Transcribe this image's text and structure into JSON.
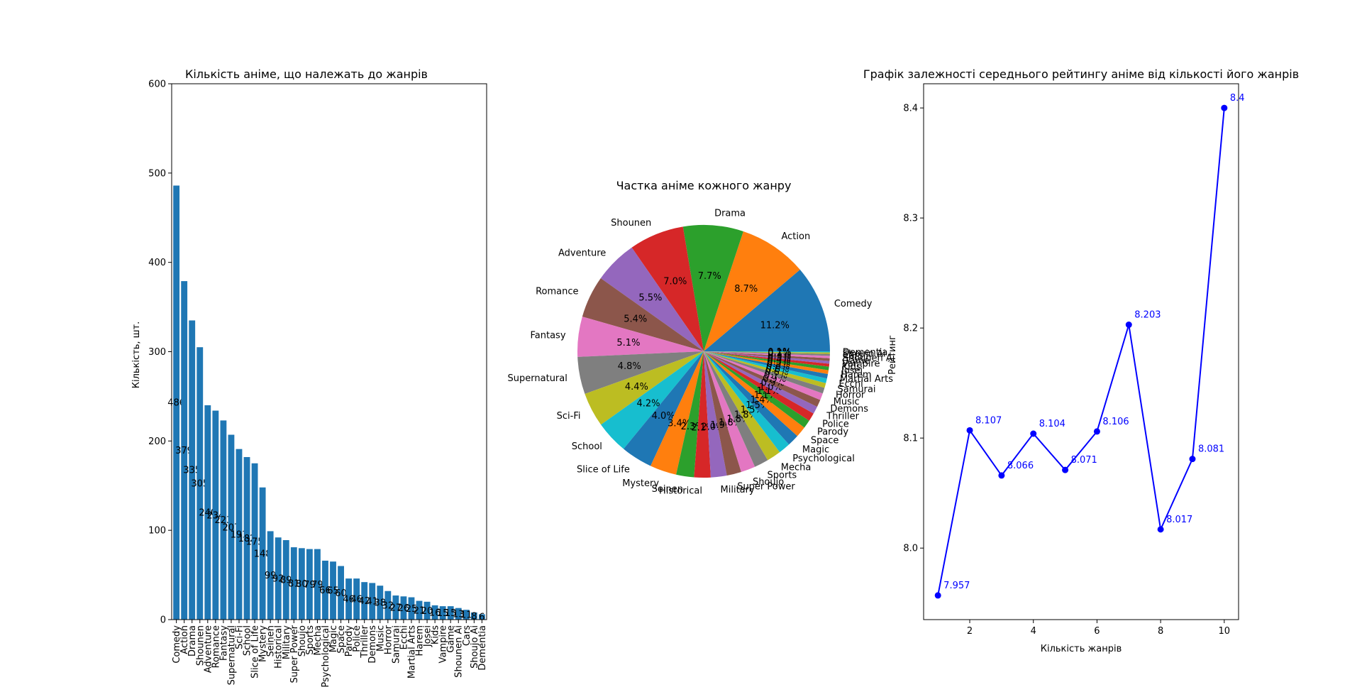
{
  "chart_data": [
    {
      "type": "bar",
      "title": "Кількість аніме, що належать до жанрів",
      "xlabel": "",
      "ylabel": "Кількість, шт.",
      "ylim": [
        0,
        600
      ],
      "yticks": [
        0,
        100,
        200,
        300,
        400,
        500,
        600
      ],
      "grid": false,
      "bar_color": "#1f77b4",
      "categories": [
        "Comedy",
        "Action",
        "Drama",
        "Shounen",
        "Adventure",
        "Romance",
        "Fantasy",
        "Supernatural",
        "Sci-Fi",
        "School",
        "Slice of Life",
        "Mystery",
        "Seinen",
        "Historical",
        "Military",
        "Super Power",
        "Shoujo",
        "Sports",
        "Mecha",
        "Psychological",
        "Magic",
        "Space",
        "Parody",
        "Police",
        "Thriller",
        "Demons",
        "Music",
        "Horror",
        "Samurai",
        "Ecchi",
        "Martial Arts",
        "Harem",
        "Josei",
        "Kids",
        "Vampire",
        "Game",
        "Shounen Ai",
        "Cars",
        "Shoujo Ai",
        "Dementia"
      ],
      "values": [
        486,
        379,
        335,
        305,
        240,
        234,
        223,
        207,
        191,
        182,
        175,
        148,
        99,
        92,
        89,
        81,
        80,
        79,
        79,
        66,
        65,
        60,
        46,
        46,
        42,
        41,
        38,
        32,
        27,
        26,
        25,
        21,
        20,
        16,
        15,
        15,
        13,
        11,
        8,
        6
      ]
    },
    {
      "type": "pie",
      "title": "Частка аніме кожного жанру",
      "labels": [
        "Comedy",
        "Action",
        "Drama",
        "Shounen",
        "Adventure",
        "Romance",
        "Fantasy",
        "Supernatural",
        "Sci-Fi",
        "School",
        "Slice of Life",
        "Mystery",
        "Seinen",
        "Historical",
        "Military",
        "Super Power",
        "Shoujo",
        "Sports",
        "Mecha",
        "Psychological",
        "Magic",
        "Space",
        "Parody",
        "Police",
        "Thriller",
        "Demons",
        "Music",
        "Horror",
        "Samurai",
        "Ecchi",
        "Martial Arts",
        "Harem",
        "Josei",
        "Kids",
        "Vampire",
        "Game",
        "Shounen Ai",
        "Cars",
        "Shoujo Ai",
        "Dementia"
      ],
      "values": [
        486,
        379,
        335,
        305,
        240,
        234,
        223,
        207,
        191,
        182,
        175,
        148,
        99,
        92,
        89,
        81,
        80,
        79,
        79,
        66,
        65,
        60,
        46,
        46,
        42,
        41,
        38,
        32,
        27,
        26,
        25,
        21,
        20,
        16,
        15,
        15,
        13,
        11,
        8,
        6
      ],
      "colors": [
        "#1f77b4",
        "#ff7f0e",
        "#2ca02c",
        "#d62728",
        "#9467bd",
        "#8c564b",
        "#e377c2",
        "#7f7f7f",
        "#bcbd22",
        "#17becf"
      ]
    },
    {
      "type": "line",
      "title": "Графік залежності середнього рейтингу аніме від кількості його жанрів",
      "xlabel": "Кількість жанрів",
      "ylabel": "Рейтинг",
      "xlim": [
        0.55,
        10.45
      ],
      "ylim": [
        7.935,
        8.422
      ],
      "xticks": [
        2,
        4,
        6,
        8,
        10
      ],
      "yticks": [
        8.0,
        8.1,
        8.2,
        8.3,
        8.4
      ],
      "grid": false,
      "line_color": "#0000ff",
      "x": [
        1,
        2,
        3,
        4,
        5,
        6,
        7,
        8,
        9,
        10
      ],
      "y": [
        7.957,
        8.107,
        8.066,
        8.104,
        8.071,
        8.106,
        8.203,
        8.017,
        8.081,
        8.4
      ],
      "point_labels": [
        "7.957",
        "8.107",
        "8.066",
        "8.104",
        "8.071",
        "8.106",
        "8.203",
        "8.017",
        "8.081",
        "8.4"
      ]
    }
  ]
}
